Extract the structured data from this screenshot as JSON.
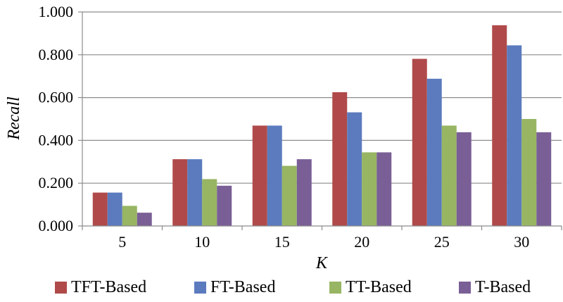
{
  "chart_data": {
    "type": "bar",
    "categories": [
      "5",
      "10",
      "15",
      "20",
      "25",
      "30"
    ],
    "series": [
      {
        "name": "TFT-Based",
        "color": "#B04A4A",
        "values": [
          0.156,
          0.312,
          0.469,
          0.625,
          0.781,
          0.938
        ]
      },
      {
        "name": "FT-Based",
        "color": "#5B7BBE",
        "values": [
          0.156,
          0.312,
          0.469,
          0.531,
          0.688,
          0.844
        ]
      },
      {
        "name": "TT-Based",
        "color": "#97B562",
        "values": [
          0.094,
          0.219,
          0.281,
          0.344,
          0.469,
          0.5
        ]
      },
      {
        "name": "T-Based",
        "color": "#7A5F96",
        "values": [
          0.062,
          0.188,
          0.312,
          0.344,
          0.438,
          0.438
        ]
      }
    ],
    "xlabel": "K",
    "ylabel": "Recall",
    "ylim": [
      0,
      1
    ],
    "yticks": [
      "0.000",
      "0.200",
      "0.400",
      "0.600",
      "0.800",
      "1.000"
    ],
    "grid": true,
    "legend_position": "bottom"
  }
}
